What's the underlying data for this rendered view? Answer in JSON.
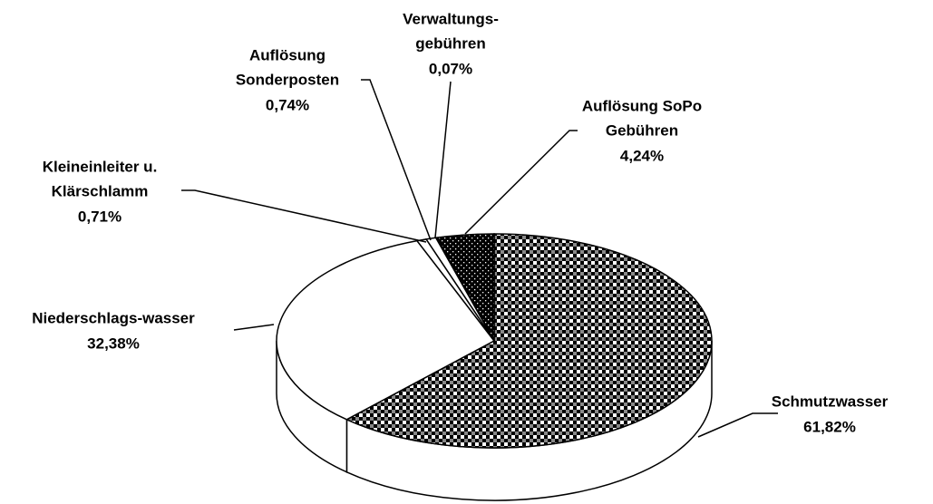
{
  "chart_data": {
    "type": "pie3d",
    "categories": [
      [
        "Schmutzwasser"
      ],
      [
        "Niederschlags-wasser"
      ],
      [
        "Kleineinleiter u.",
        "Klärschlamm"
      ],
      [
        "Auflösung",
        "Sonderposten"
      ],
      [
        "Verwaltungs-",
        "gebühren"
      ],
      [
        "Auflösung SoPo",
        "Gebühren"
      ]
    ],
    "values": [
      61.82,
      32.38,
      0.71,
      0.74,
      0.07,
      4.24
    ],
    "value_labels": [
      "61,82%",
      "32,38%",
      "0,71%",
      "0,74%",
      "0,07%",
      "4,24%"
    ],
    "fills": [
      "checker",
      "white",
      "white",
      "white",
      "white",
      "dots"
    ]
  }
}
